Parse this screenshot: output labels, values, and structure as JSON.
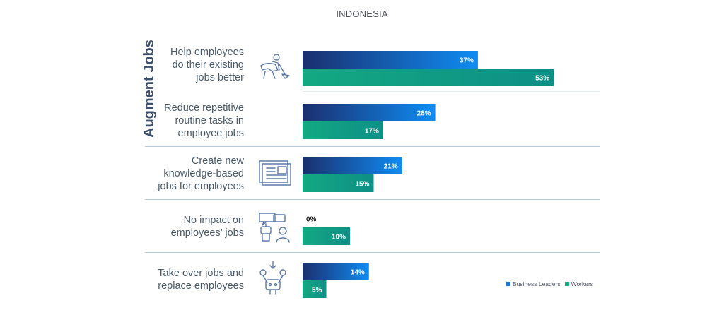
{
  "chart_data": {
    "type": "bar",
    "orientation": "horizontal",
    "title": "INDONESIA",
    "group_label": "Augment Jobs",
    "categories": [
      "Help employees\ndo their existing\njobs better",
      "Reduce repetitive\nroutine tasks in\nemployee jobs",
      "Create new\nknowledge-based\njobs for employees",
      "No impact on\nemployees’ jobs",
      "Take over jobs and\nreplace employees"
    ],
    "icons": [
      "worker-digging-icon",
      "",
      "document-list-icon",
      "person-robot-chat-icon",
      "robot-arms-icon"
    ],
    "series": [
      {
        "name": "Business Leaders",
        "values": [
          37,
          28,
          21,
          0,
          14
        ],
        "labels": [
          "37%",
          "28%",
          "21%",
          "0%",
          "14%"
        ]
      },
      {
        "name": "Workers",
        "values": [
          53,
          17,
          15,
          10,
          5
        ],
        "labels": [
          "53%",
          "17%",
          "15%",
          "10%",
          "5%"
        ]
      }
    ],
    "xlim": [
      0,
      100
    ],
    "legend_position": "bottom-right",
    "colors": {
      "leaders_start": "#1b2f6e",
      "leaders_end": "#0f8cf2",
      "workers_start": "#13a982",
      "workers_end": "#0e8f86",
      "separator": "#b9c7dc"
    }
  }
}
